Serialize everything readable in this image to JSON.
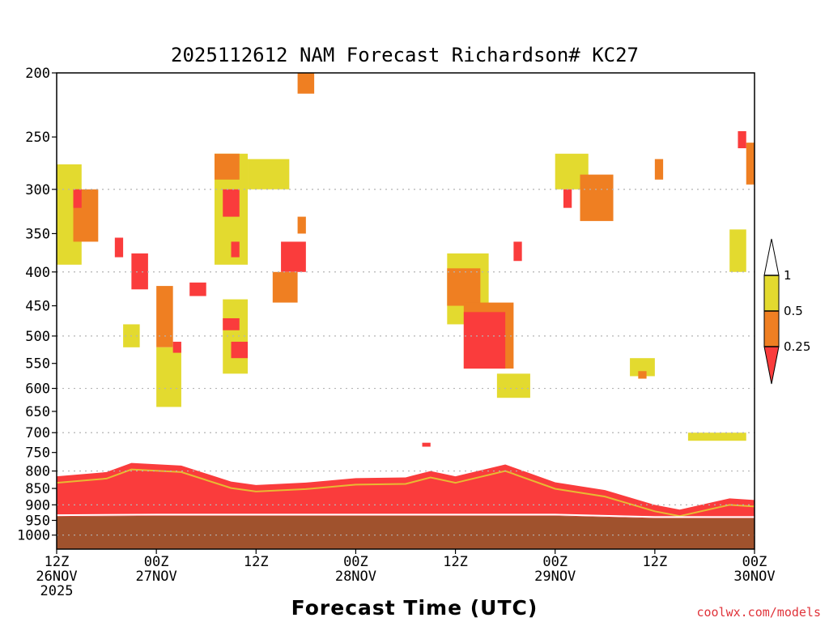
{
  "chart_data": {
    "type": "heatmap",
    "title": "2025112612 NAM Forecast Richardson# KC27",
    "xlabel": "Forecast Time (UTC)",
    "credit": "coolwx.com/models",
    "y_scale": "log-pressure",
    "y_axis": {
      "label": "",
      "min_hPa": 200,
      "max_hPa": 1050,
      "ticks": [
        200,
        250,
        300,
        350,
        400,
        450,
        500,
        550,
        600,
        650,
        700,
        750,
        800,
        850,
        900,
        950,
        1000
      ]
    },
    "x_axis": {
      "start": "2025-11-26T12Z",
      "end": "2025-11-30T00Z",
      "ticks": [
        {
          "time": "2025-11-26T12Z",
          "line1": "12Z",
          "line2": "26NOV",
          "line3": "2025"
        },
        {
          "time": "2025-11-27T00Z",
          "line1": "00Z",
          "line2": "27NOV",
          "line3": ""
        },
        {
          "time": "2025-11-27T12Z",
          "line1": "12Z",
          "line2": "",
          "line3": ""
        },
        {
          "time": "2025-11-28T00Z",
          "line1": "00Z",
          "line2": "28NOV",
          "line3": ""
        },
        {
          "time": "2025-11-28T12Z",
          "line1": "12Z",
          "line2": "",
          "line3": ""
        },
        {
          "time": "2025-11-29T00Z",
          "line1": "00Z",
          "line2": "29NOV",
          "line3": ""
        },
        {
          "time": "2025-11-29T12Z",
          "line1": "12Z",
          "line2": "",
          "line3": ""
        },
        {
          "time": "2025-11-30T00Z",
          "line1": "00Z",
          "line2": "30NOV",
          "line3": ""
        }
      ]
    },
    "grid": {
      "horizontal_dotted": true,
      "at_hPa": [
        300,
        400,
        500,
        600,
        700,
        800,
        900,
        1000
      ]
    },
    "legend": {
      "placement": "right",
      "labels": [
        "1",
        "0.5",
        "0.25"
      ],
      "bins": [
        {
          "range": "> 1",
          "color": "#ffffff"
        },
        {
          "range": "0.5 – 1",
          "color": "#e3da2f"
        },
        {
          "range": "0.25 – 0.5",
          "color": "#ef7f22"
        },
        {
          "range": "< 0.25",
          "color": "#fa3c3c"
        }
      ]
    },
    "colors": {
      "yellow": "#e3da2f",
      "orange": "#ef7f22",
      "red": "#fa3c3c",
      "below_ground": "#a0522d"
    },
    "surface_pressure_hPa": [
      [
        "2025-11-26T12Z",
        937
      ],
      [
        "2025-11-27T00Z",
        935
      ],
      [
        "2025-11-27T12Z",
        935
      ],
      [
        "2025-11-28T00Z",
        935
      ],
      [
        "2025-11-28T12Z",
        935
      ],
      [
        "2025-11-29T00Z",
        935
      ],
      [
        "2025-11-29T12Z",
        943
      ],
      [
        "2025-11-30T00Z",
        943
      ]
    ],
    "boundary_layer_top_hPa": [
      [
        "2025-11-26T12Z",
        815
      ],
      [
        "2025-11-26T18Z",
        803
      ],
      [
        "2025-11-26T21Z",
        778
      ],
      [
        "2025-11-27T03Z",
        785
      ],
      [
        "2025-11-27T09Z",
        830
      ],
      [
        "2025-11-27T12Z",
        840
      ],
      [
        "2025-11-27T18Z",
        833
      ],
      [
        "2025-11-28T00Z",
        820
      ],
      [
        "2025-11-28T06Z",
        818
      ],
      [
        "2025-11-28T09Z",
        800
      ],
      [
        "2025-11-28T12Z",
        815
      ],
      [
        "2025-11-28T18Z",
        782
      ],
      [
        "2025-11-29T00Z",
        832
      ],
      [
        "2025-11-29T06Z",
        855
      ],
      [
        "2025-11-29T12Z",
        900
      ],
      [
        "2025-11-29T15Z",
        915
      ],
      [
        "2025-11-29T21Z",
        880
      ],
      [
        "2025-11-30T00Z",
        885
      ]
    ],
    "cells": [
      {
        "t0": "2025-11-26T12Z",
        "t1": "2025-11-26T15Z",
        "p_top": 275,
        "p_bot": 390,
        "value": "0.5-1"
      },
      {
        "t0": "2025-11-26T14Z",
        "t1": "2025-11-26T17Z",
        "p_top": 300,
        "p_bot": 360,
        "value": "0.25-0.5"
      },
      {
        "t0": "2025-11-26T14Z",
        "t1": "2025-11-26T15Z",
        "p_top": 300,
        "p_bot": 320,
        "value": "<0.25"
      },
      {
        "t0": "2025-11-26T19Z",
        "t1": "2025-11-26T20Z",
        "p_top": 355,
        "p_bot": 380,
        "value": "<0.25"
      },
      {
        "t0": "2025-11-26T21Z",
        "t1": "2025-11-26T23Z",
        "p_top": 375,
        "p_bot": 425,
        "value": "<0.25"
      },
      {
        "t0": "2025-11-26T20Z",
        "t1": "2025-11-26T22Z",
        "p_top": 480,
        "p_bot": 520,
        "value": "0.5-1"
      },
      {
        "t0": "2025-11-27T00Z",
        "t1": "2025-11-27T02Z",
        "p_top": 420,
        "p_bot": 520,
        "value": "0.25-0.5"
      },
      {
        "t0": "2025-11-27T00Z",
        "t1": "2025-11-27T03Z",
        "p_top": 520,
        "p_bot": 640,
        "value": "0.5-1"
      },
      {
        "t0": "2025-11-27T02Z",
        "t1": "2025-11-27T03Z",
        "p_top": 510,
        "p_bot": 530,
        "value": "<0.25"
      },
      {
        "t0": "2025-11-27T04Z",
        "t1": "2025-11-27T06Z",
        "p_top": 415,
        "p_bot": 435,
        "value": "<0.25"
      },
      {
        "t0": "2025-11-27T07Z",
        "t1": "2025-11-27T11Z",
        "p_top": 265,
        "p_bot": 390,
        "value": "0.5-1"
      },
      {
        "t0": "2025-11-27T07Z",
        "t1": "2025-11-27T10Z",
        "p_top": 265,
        "p_bot": 290,
        "value": "0.25-0.5"
      },
      {
        "t0": "2025-11-27T08Z",
        "t1": "2025-11-27T10Z",
        "p_top": 300,
        "p_bot": 330,
        "value": "<0.25"
      },
      {
        "t0": "2025-11-27T09Z",
        "t1": "2025-11-27T10Z",
        "p_top": 360,
        "p_bot": 380,
        "value": "<0.25"
      },
      {
        "t0": "2025-11-27T08Z",
        "t1": "2025-11-27T11Z",
        "p_top": 440,
        "p_bot": 570,
        "value": "0.5-1"
      },
      {
        "t0": "2025-11-27T08Z",
        "t1": "2025-11-27T10Z",
        "p_top": 470,
        "p_bot": 490,
        "value": "<0.25"
      },
      {
        "t0": "2025-11-27T09Z",
        "t1": "2025-11-27T11Z",
        "p_top": 510,
        "p_bot": 540,
        "value": "<0.25"
      },
      {
        "t0": "2025-11-27T11Z",
        "t1": "2025-11-27T16Z",
        "p_top": 270,
        "p_bot": 300,
        "value": "0.5-1"
      },
      {
        "t0": "2025-11-27T17Z",
        "t1": "2025-11-27T19Z",
        "p_top": 200,
        "p_bot": 215,
        "value": "0.25-0.5"
      },
      {
        "t0": "2025-11-27T15Z",
        "t1": "2025-11-27T18Z",
        "p_top": 360,
        "p_bot": 400,
        "value": "<0.25"
      },
      {
        "t0": "2025-11-27T14Z",
        "t1": "2025-11-27T17Z",
        "p_top": 400,
        "p_bot": 445,
        "value": "0.25-0.5"
      },
      {
        "t0": "2025-11-27T17Z",
        "t1": "2025-11-27T18Z",
        "p_top": 330,
        "p_bot": 350,
        "value": "0.25-0.5"
      },
      {
        "t0": "2025-11-28T08Z",
        "t1": "2025-11-28T09Z",
        "p_top": 725,
        "p_bot": 735,
        "value": "<0.25"
      },
      {
        "t0": "2025-11-28T11Z",
        "t1": "2025-11-28T16Z",
        "p_top": 375,
        "p_bot": 480,
        "value": "0.5-1"
      },
      {
        "t0": "2025-11-28T11Z",
        "t1": "2025-11-28T15Z",
        "p_top": 395,
        "p_bot": 450,
        "value": "0.25-0.5"
      },
      {
        "t0": "2025-11-28T13Z",
        "t1": "2025-11-28T19Z",
        "p_top": 445,
        "p_bot": 560,
        "value": "0.25-0.5"
      },
      {
        "t0": "2025-11-28T13Z",
        "t1": "2025-11-28T18Z",
        "p_top": 460,
        "p_bot": 560,
        "value": "<0.25"
      },
      {
        "t0": "2025-11-28T17Z",
        "t1": "2025-11-28T21Z",
        "p_top": 570,
        "p_bot": 620,
        "value": "0.5-1"
      },
      {
        "t0": "2025-11-28T19Z",
        "t1": "2025-11-28T20Z",
        "p_top": 360,
        "p_bot": 385,
        "value": "<0.25"
      },
      {
        "t0": "2025-11-29T00Z",
        "t1": "2025-11-29T04Z",
        "p_top": 265,
        "p_bot": 300,
        "value": "0.5-1"
      },
      {
        "t0": "2025-11-29T01Z",
        "t1": "2025-11-29T02Z",
        "p_top": 300,
        "p_bot": 320,
        "value": "<0.25"
      },
      {
        "t0": "2025-11-29T03Z",
        "t1": "2025-11-29T07Z",
        "p_top": 285,
        "p_bot": 335,
        "value": "0.25-0.5"
      },
      {
        "t0": "2025-11-29T12Z",
        "t1": "2025-11-29T13Z",
        "p_top": 270,
        "p_bot": 290,
        "value": "0.25-0.5"
      },
      {
        "t0": "2025-11-29T09Z",
        "t1": "2025-11-29T12Z",
        "p_top": 540,
        "p_bot": 575,
        "value": "0.5-1"
      },
      {
        "t0": "2025-11-29T10Z",
        "t1": "2025-11-29T11Z",
        "p_top": 565,
        "p_bot": 580,
        "value": "0.25-0.5"
      },
      {
        "t0": "2025-11-29T21Z",
        "t1": "2025-11-29T23Z",
        "p_top": 345,
        "p_bot": 400,
        "value": "0.5-1"
      },
      {
        "t0": "2025-11-29T23Z",
        "t1": "2025-11-30T00Z",
        "p_top": 255,
        "p_bot": 295,
        "value": "0.25-0.5"
      },
      {
        "t0": "2025-11-29T22Z",
        "t1": "2025-11-29T23Z",
        "p_top": 245,
        "p_bot": 260,
        "value": "<0.25"
      },
      {
        "t0": "2025-11-29T16Z",
        "t1": "2025-11-29T23Z",
        "p_top": 700,
        "p_bot": 720,
        "value": "0.5-1"
      }
    ]
  }
}
